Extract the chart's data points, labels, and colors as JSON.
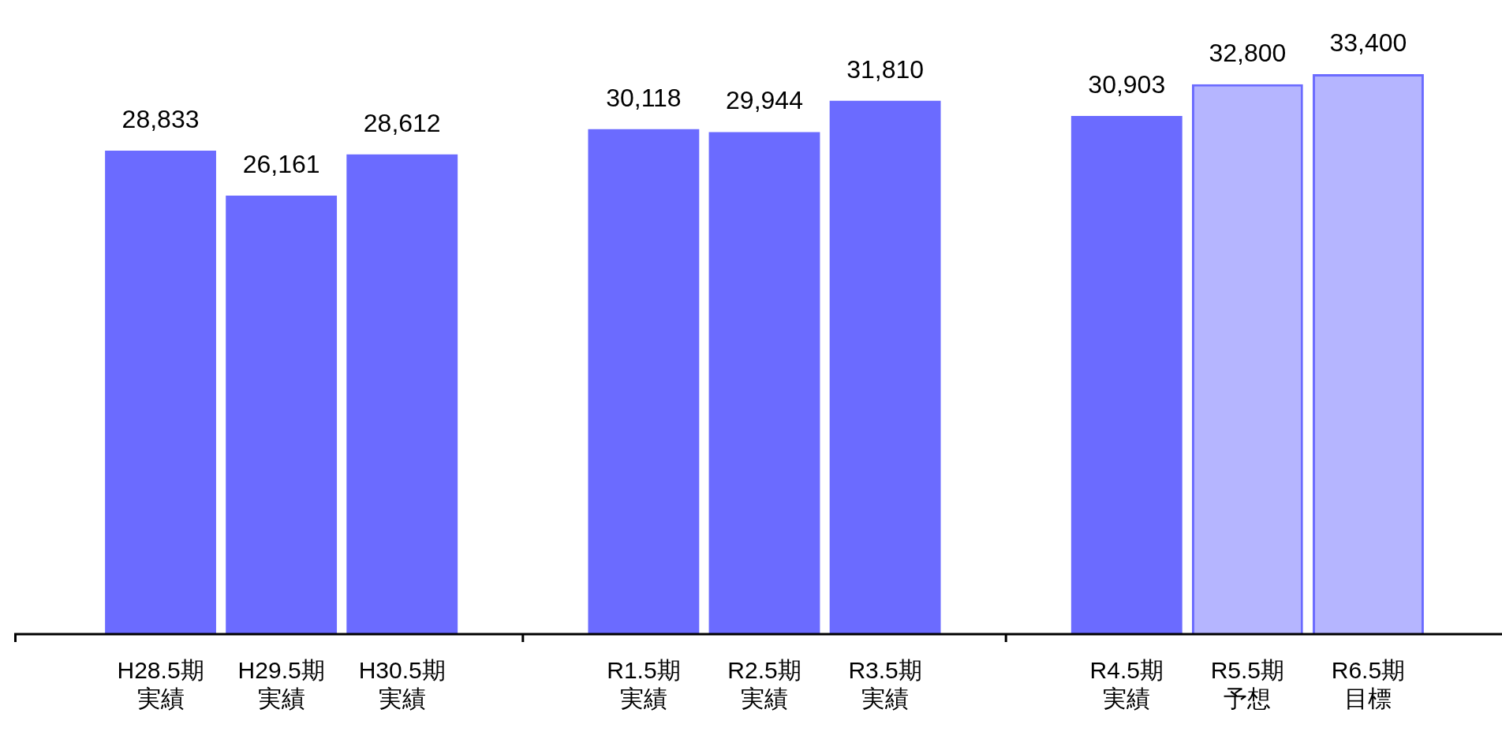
{
  "chart_data": {
    "type": "bar",
    "categories": [
      "H28.5期実績",
      "H29.5期実績",
      "H30.5期実績",
      null,
      "R1.5期実績",
      "R2.5期実績",
      "R3.5期実績",
      null,
      "R4.5期実績",
      "R5.5期予想",
      "R6.5期目標"
    ],
    "series": [
      {
        "color": "#6b6bff",
        "values": [
          28833,
          26161,
          28612,
          null,
          30118,
          29944,
          31810,
          null,
          30903,
          null,
          null
        ],
        "value_labels": [
          "28,833",
          "26,161",
          "28,612",
          null,
          "30,118",
          "29,944",
          "31,810",
          null,
          "30,903",
          null,
          null
        ]
      },
      {
        "color": "#6b6bff",
        "line_style": "dashed",
        "values": [
          null,
          null,
          null,
          null,
          null,
          null,
          null,
          null,
          null,
          32800,
          null
        ],
        "value_labels": [
          null,
          null,
          null,
          null,
          null,
          null,
          null,
          null,
          null,
          "32,800",
          null
        ]
      },
      {
        "color": "#6b6bff",
        "line_style": "dashed",
        "values": [
          null,
          null,
          null,
          null,
          null,
          null,
          null,
          null,
          null,
          null,
          33400
        ],
        "value_labels": [
          null,
          null,
          null,
          null,
          null,
          null,
          null,
          null,
          null,
          null,
          "33,400"
        ]
      }
    ],
    "tick_labels": "x",
    "grid": false,
    "legend": false
  }
}
